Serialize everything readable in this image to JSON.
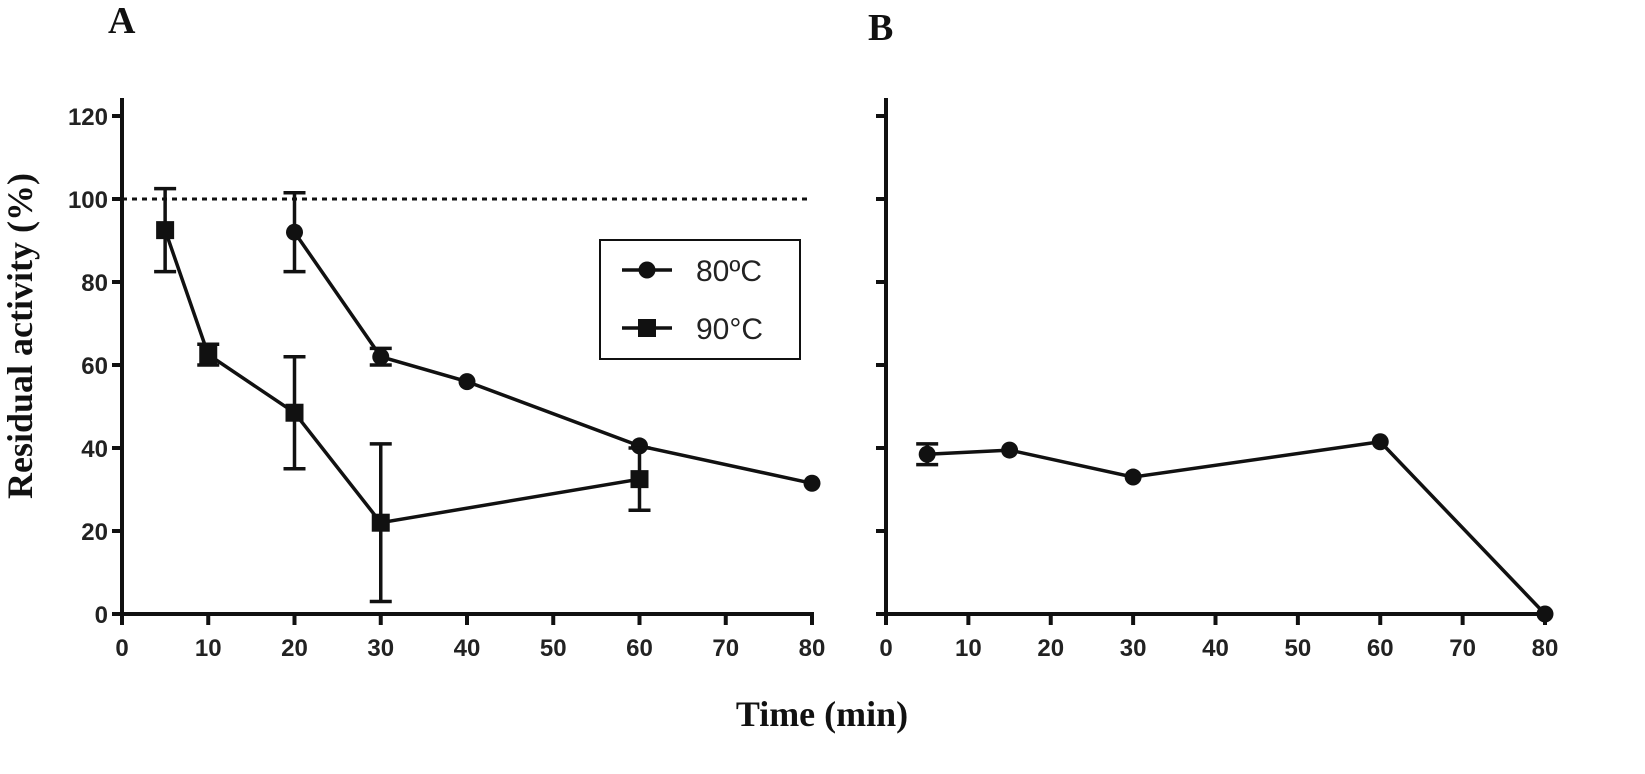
{
  "xlabel": "Time (min)",
  "colors": {
    "ink": "#111111",
    "background": "#ffffff"
  },
  "chart_data": [
    {
      "panel": "A",
      "type": "line",
      "title": "",
      "xlabel": "Time (min)",
      "ylabel": "Residual activity (%)",
      "xlim": [
        0,
        80
      ],
      "ylim": [
        0,
        120
      ],
      "xticks": [
        0,
        10,
        20,
        30,
        40,
        50,
        60,
        70,
        80
      ],
      "yticks": [
        0,
        20,
        40,
        60,
        80,
        100,
        120
      ],
      "reference_line": {
        "y": 100,
        "style": "dotted"
      },
      "legend": {
        "position": "center-right"
      },
      "series": [
        {
          "name": "80ºC",
          "marker": "circle",
          "points": [
            {
              "x": 20,
              "y": 92,
              "err": 9.5
            },
            {
              "x": 30,
              "y": 62,
              "err": 2
            },
            {
              "x": 40,
              "y": 56,
              "err": 0
            },
            {
              "x": 60,
              "y": 40.5,
              "err": 0
            },
            {
              "x": 80,
              "y": 31.5,
              "err": 0
            }
          ]
        },
        {
          "name": "90°C",
          "marker": "square",
          "points": [
            {
              "x": 5,
              "y": 92.5,
              "err": 10
            },
            {
              "x": 10,
              "y": 62.5,
              "err": 2.5
            },
            {
              "x": 20,
              "y": 48.5,
              "err": 13.5
            },
            {
              "x": 30,
              "y": 22,
              "err": 19
            },
            {
              "x": 60,
              "y": 32.5,
              "err": 7.5
            }
          ]
        }
      ]
    },
    {
      "panel": "B",
      "type": "line",
      "title": "",
      "xlabel": "Time (min)",
      "ylabel": "",
      "xlim": [
        0,
        80
      ],
      "ylim": [
        0,
        120
      ],
      "xticks": [
        0,
        10,
        20,
        30,
        40,
        50,
        60,
        70,
        80
      ],
      "yticks": [
        0,
        20,
        40,
        60,
        80,
        100,
        120
      ],
      "show_ytick_labels": false,
      "series": [
        {
          "name": "",
          "marker": "circle",
          "points": [
            {
              "x": 5,
              "y": 38.5,
              "err": 2.5
            },
            {
              "x": 15,
              "y": 39.5,
              "err": 0
            },
            {
              "x": 30,
              "y": 33,
              "err": 0
            },
            {
              "x": 60,
              "y": 41.5,
              "err": 0
            },
            {
              "x": 80,
              "y": 0,
              "err": 0
            }
          ]
        }
      ]
    }
  ]
}
